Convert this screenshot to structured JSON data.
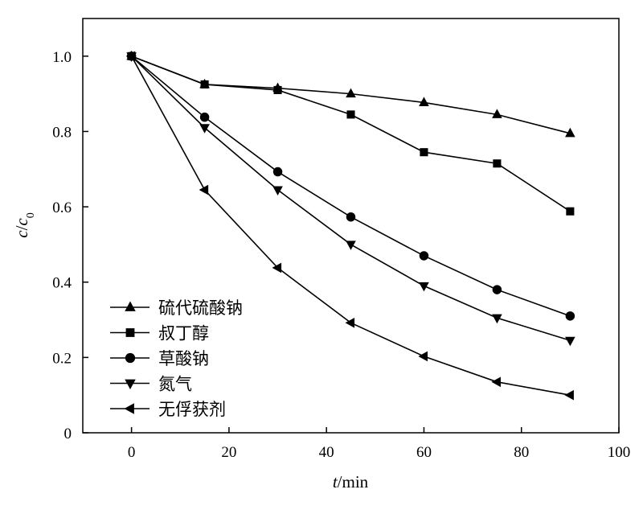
{
  "chart_data": {
    "type": "line",
    "x": [
      0,
      15,
      30,
      45,
      60,
      75,
      90
    ],
    "xlim": [
      -10,
      100
    ],
    "ylim": [
      0,
      1.1
    ],
    "xticks": [
      "0",
      "20",
      "40",
      "60",
      "80",
      "100"
    ],
    "yticks": [
      "0",
      "0.2",
      "0.4",
      "0.6",
      "0.8",
      "1.0"
    ],
    "xlabel": {
      "italic": "t",
      "rest": "/min"
    },
    "ylabel": {
      "italic": "c",
      "slash": "/",
      "italic2": "c",
      "sub": "0"
    },
    "grid": false,
    "legend_position": "bottom-left",
    "series": [
      {
        "name": "硫代硫酸钠",
        "marker": "triangle-up",
        "values": [
          1.0,
          0.925,
          0.915,
          0.9,
          0.877,
          0.845,
          0.795
        ]
      },
      {
        "name": "叔丁醇",
        "marker": "square",
        "values": [
          1.0,
          0.925,
          0.91,
          0.845,
          0.745,
          0.715,
          0.588
        ]
      },
      {
        "name": "草酸钠",
        "marker": "circle",
        "values": [
          1.0,
          0.838,
          0.693,
          0.573,
          0.47,
          0.38,
          0.31
        ]
      },
      {
        "name": "氮气",
        "marker": "triangle-down",
        "values": [
          1.0,
          0.81,
          0.645,
          0.5,
          0.39,
          0.305,
          0.245
        ]
      },
      {
        "name": "无俘获剂",
        "marker": "triangle-left",
        "values": [
          1.0,
          0.645,
          0.438,
          0.292,
          0.203,
          0.135,
          0.1
        ]
      }
    ]
  }
}
